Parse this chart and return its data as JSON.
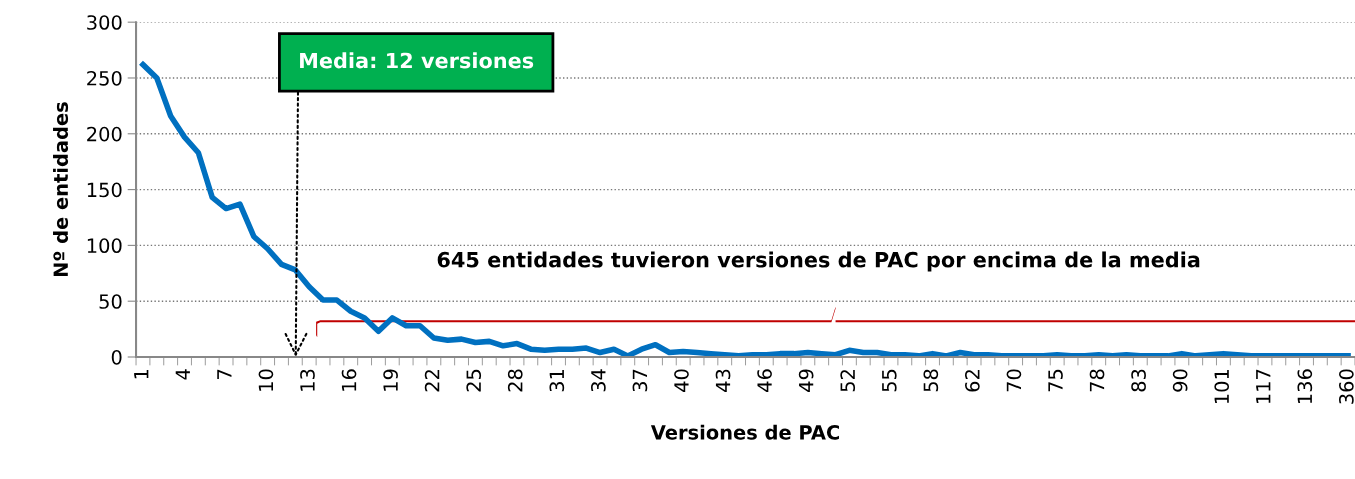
{
  "chart_data": {
    "type": "line",
    "xlabel": "Versiones de PAC",
    "ylabel": "Nº de entidades",
    "categories": [
      "1",
      null,
      null,
      "4",
      null,
      null,
      "7",
      null,
      null,
      "10",
      null,
      null,
      "13",
      null,
      null,
      "16",
      null,
      null,
      "19",
      null,
      null,
      "22",
      null,
      null,
      "25",
      null,
      null,
      "28",
      null,
      null,
      "31",
      null,
      null,
      "34",
      null,
      null,
      "37",
      null,
      null,
      "40",
      null,
      null,
      "43",
      null,
      null,
      "46",
      null,
      null,
      "49",
      null,
      null,
      "52",
      null,
      null,
      "55",
      null,
      null,
      "58",
      null,
      null,
      "62",
      null,
      null,
      "70",
      null,
      null,
      "75",
      null,
      null,
      "78",
      null,
      null,
      "83",
      null,
      null,
      "90",
      null,
      null,
      "101",
      null,
      null,
      "117",
      null,
      null,
      "136",
      null,
      null,
      "360"
    ],
    "series": [
      {
        "color": "#0070c0",
        "values": [
          262,
          250,
          216,
          197,
          183,
          143,
          133,
          137,
          108,
          97,
          83,
          78,
          63,
          51,
          51,
          41,
          35,
          23,
          35,
          28,
          28,
          17,
          15,
          16,
          13,
          14,
          10,
          12,
          7,
          6,
          7,
          7,
          8,
          4,
          7,
          1,
          7,
          11,
          4,
          5,
          4,
          3,
          2,
          1,
          2,
          2,
          3,
          3,
          4,
          3,
          2,
          6,
          4,
          4,
          2,
          2,
          1,
          3,
          1,
          4,
          2,
          2,
          1,
          1,
          1,
          1,
          2,
          1,
          1,
          2,
          1,
          2,
          1,
          1,
          1,
          3,
          1,
          2,
          3,
          2,
          1,
          1,
          1,
          1,
          1,
          1,
          1,
          1
        ]
      }
    ],
    "ylim": [
      0,
      300
    ],
    "yticks": [
      0,
      50,
      100,
      150,
      200,
      250,
      300
    ],
    "grid": "y",
    "marker": "none",
    "line_style": "solid",
    "legend": false,
    "annotations": [
      "Media: 12 versiones",
      "645 entidades tuvieron versiones de PAC por encima de la media"
    ]
  }
}
